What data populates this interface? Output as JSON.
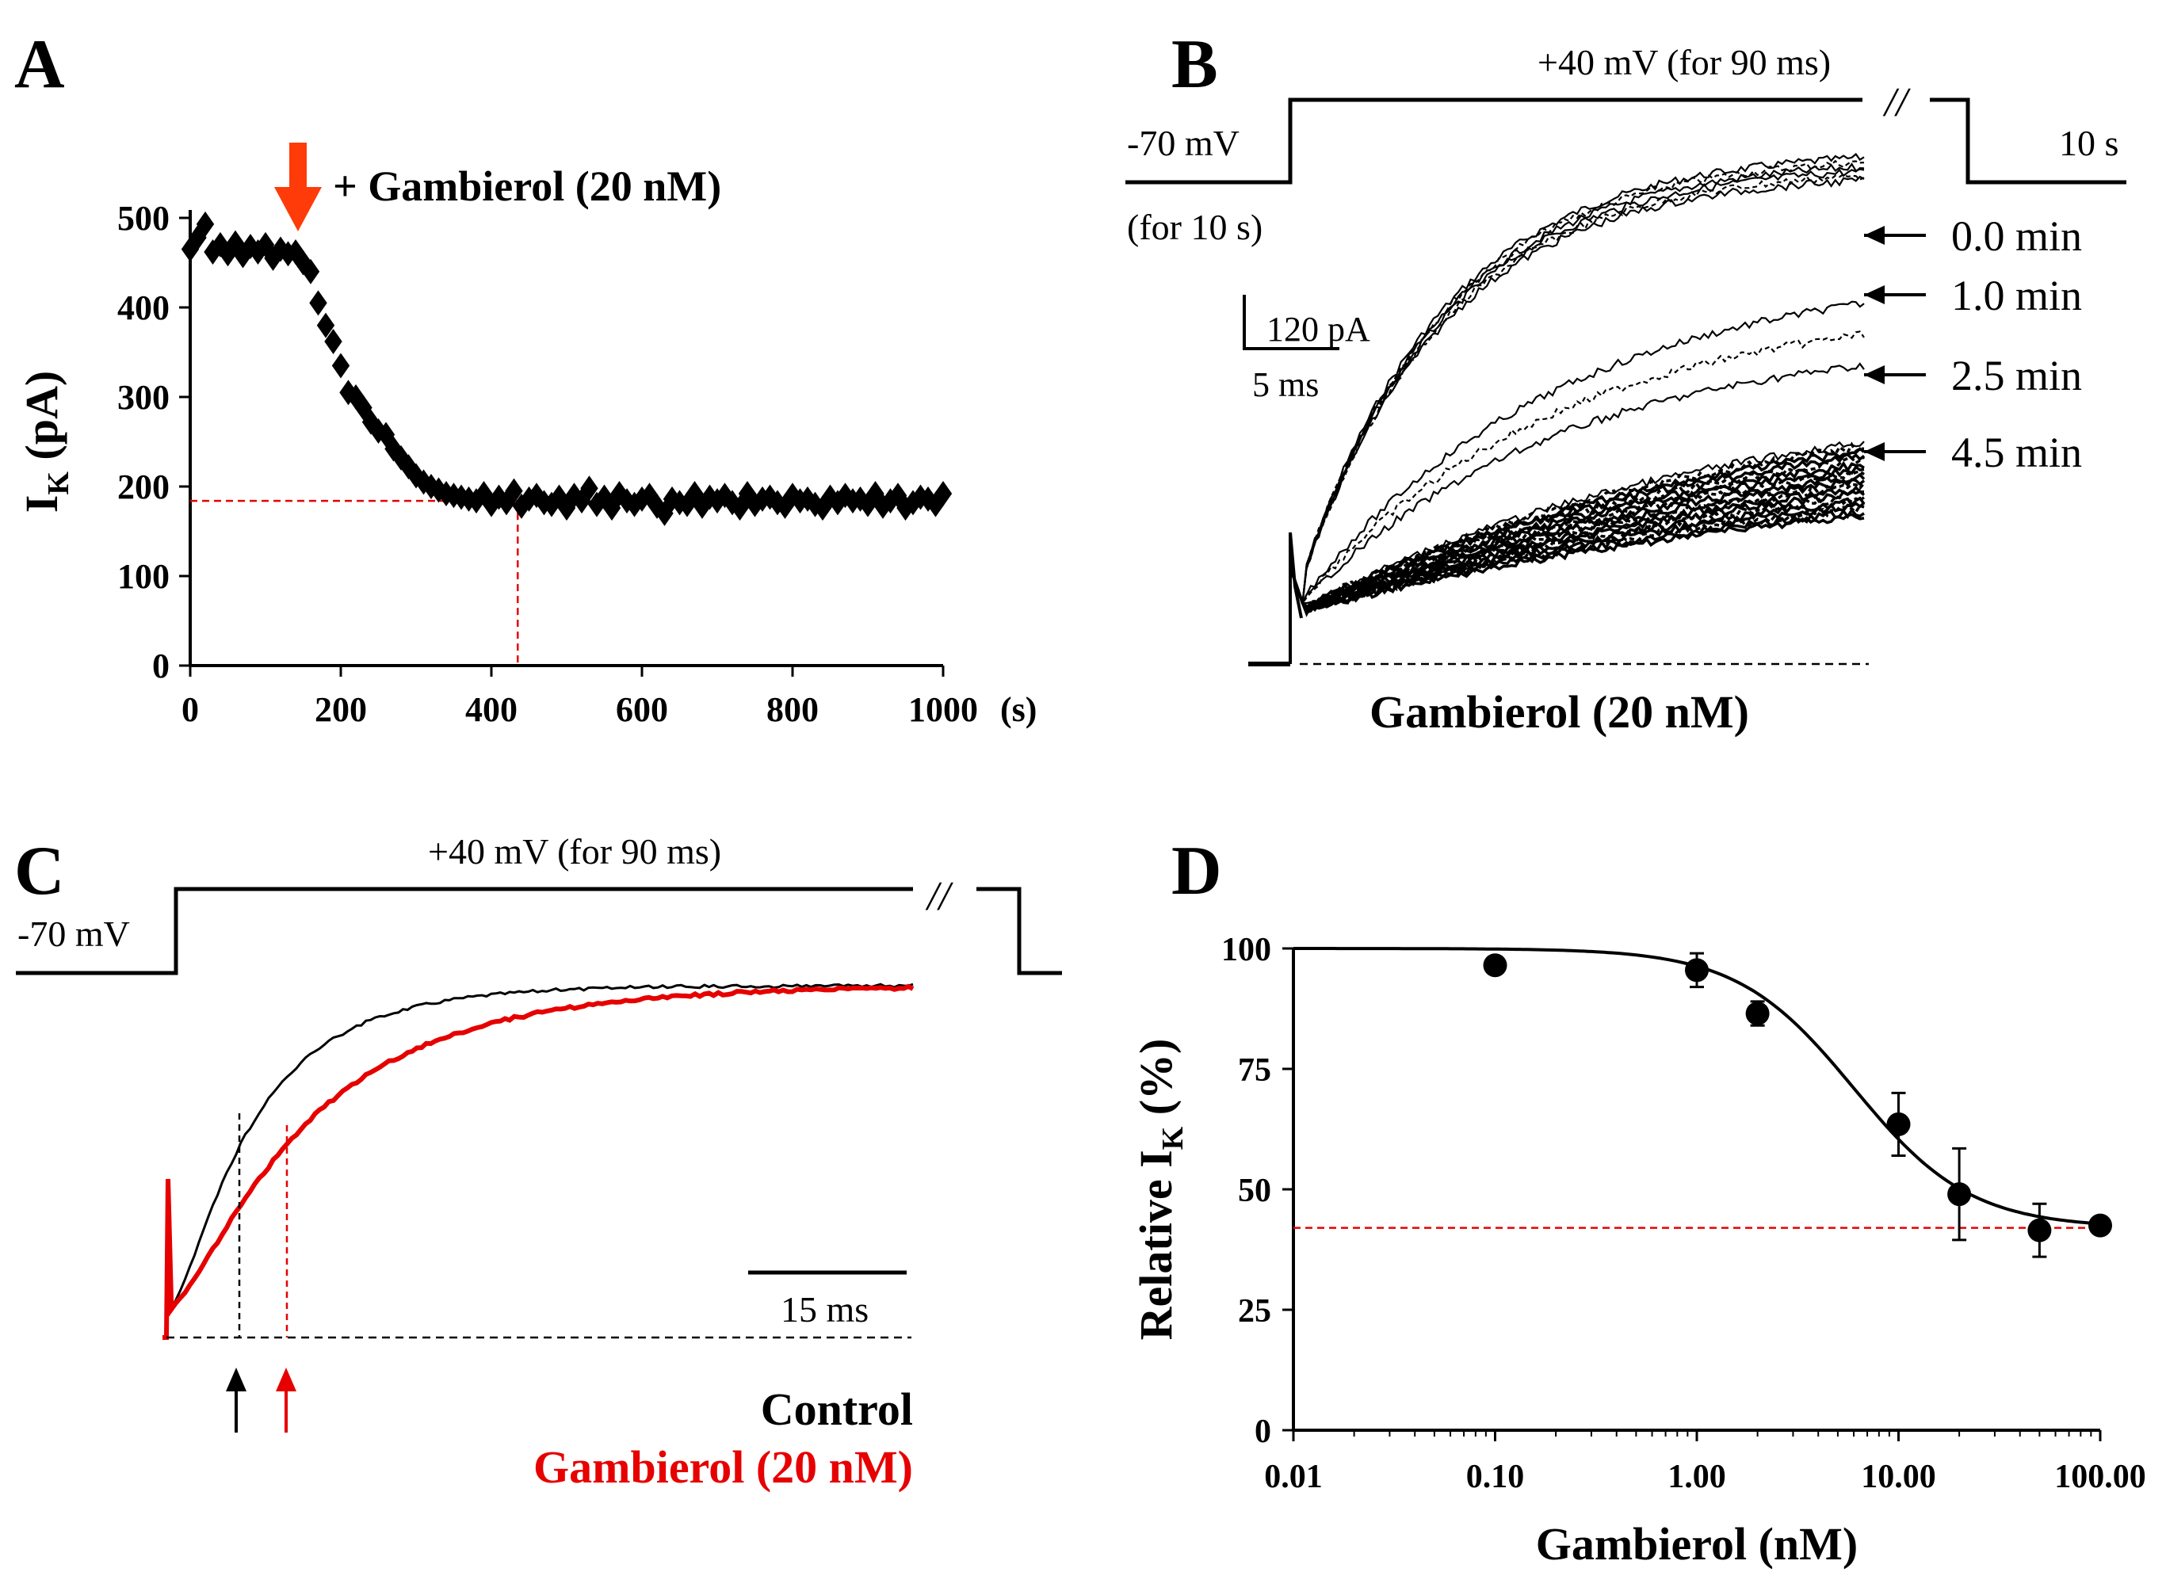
{
  "colors": {
    "ink": "#000000",
    "accent_red": "#e60000",
    "arrow_orange": "#ff3b0a"
  },
  "panels": {
    "A": {
      "label": "A",
      "annotation": "+ Gambierol (20 nM)",
      "annotation_arrow_icon": "down-arrow-icon",
      "chart_ref": 0
    },
    "B": {
      "label": "B",
      "protocol": {
        "holding": "-70 mV",
        "holding_duration": "(for 10 s)",
        "step": "+40 mV (for 90 ms)",
        "break_mark": "//",
        "interval": "10 s"
      },
      "scale_bar": {
        "current": "120 pA",
        "time": "5 ms"
      },
      "time_labels": [
        "0.0 min",
        "1.0 min",
        "2.5 min",
        "4.5 min"
      ],
      "caption": "Gambierol (20 nM)"
    },
    "C": {
      "label": "C",
      "protocol": {
        "holding": "-70 mV",
        "step": "+40 mV (for 90 ms)",
        "break_mark": "//"
      },
      "scale_bar": {
        "time": "15 ms"
      },
      "legend": {
        "control": "Control",
        "treated": "Gambierol (20 nM)"
      }
    },
    "D": {
      "label": "D",
      "chart_ref": 1
    }
  },
  "chart_data": [
    {
      "panel": "A",
      "type": "scatter",
      "xlabel": "(s)",
      "ylabel_main": "I",
      "ylabel_sub": "K",
      "ylabel_unit": "(pA)",
      "xlim": [
        0,
        1000
      ],
      "ylim": [
        0,
        500
      ],
      "xticks": [
        0,
        200,
        400,
        600,
        800,
        1000
      ],
      "yticks": [
        0,
        100,
        200,
        300,
        400,
        500
      ],
      "treatment_time": 140,
      "steady_state": 184,
      "steady_state_time": 435,
      "x": [
        0,
        10,
        20,
        30,
        40,
        50,
        60,
        70,
        80,
        90,
        100,
        110,
        120,
        130,
        140,
        150,
        160,
        170,
        180,
        190,
        200,
        210,
        220,
        230,
        240,
        250,
        260,
        270,
        280,
        290,
        300,
        310,
        320,
        330,
        340,
        350,
        360,
        370,
        380,
        390,
        400,
        410,
        420,
        430,
        440,
        450,
        460,
        470,
        480,
        490,
        500,
        510,
        520,
        530,
        540,
        550,
        560,
        570,
        580,
        590,
        600,
        610,
        620,
        630,
        640,
        650,
        660,
        670,
        680,
        690,
        700,
        710,
        720,
        730,
        740,
        750,
        760,
        770,
        780,
        790,
        800,
        810,
        820,
        830,
        840,
        850,
        860,
        870,
        880,
        890,
        900,
        910,
        920,
        930,
        940,
        950,
        960,
        970,
        980,
        990,
        1000
      ],
      "y": [
        465,
        478,
        493,
        462,
        470,
        460,
        472,
        458,
        468,
        462,
        470,
        455,
        465,
        460,
        462,
        450,
        440,
        405,
        380,
        362,
        335,
        305,
        300,
        288,
        272,
        262,
        258,
        242,
        232,
        222,
        212,
        205,
        200,
        196,
        192,
        190,
        188,
        186,
        184,
        192,
        180,
        188,
        182,
        195,
        178,
        186,
        190,
        182,
        180,
        188,
        176,
        190,
        184,
        198,
        180,
        188,
        176,
        192,
        184,
        180,
        186,
        190,
        178,
        170,
        186,
        182,
        180,
        192,
        178,
        188,
        184,
        190,
        182,
        176,
        192,
        180,
        186,
        188,
        182,
        178,
        190,
        184,
        186,
        180,
        176,
        188,
        182,
        190,
        184,
        186,
        180,
        192,
        178,
        184,
        190,
        176,
        182,
        188,
        186,
        180,
        192
      ]
    },
    {
      "panel": "D",
      "type": "scatter",
      "xlabel": "Gambierol (nM)",
      "ylabel_main": "Relative I",
      "ylabel_sub": "K",
      "ylabel_unit": "(%)",
      "xscale": "log",
      "xlim": [
        0.01,
        100
      ],
      "ylim": [
        0,
        100
      ],
      "xticks": [
        0.01,
        0.1,
        1,
        10,
        100
      ],
      "xtick_labels": [
        "0.01",
        "0.10",
        "1.00",
        "10.00",
        "100.00"
      ],
      "yticks": [
        0,
        25,
        50,
        75,
        100
      ],
      "x": [
        0.1,
        1,
        2,
        10,
        20,
        50,
        100
      ],
      "y": [
        96.5,
        95.5,
        86.5,
        63.5,
        49,
        41.5,
        42.5
      ],
      "error": [
        0,
        3.5,
        2.5,
        6.5,
        9.5,
        5.5,
        0
      ],
      "fit": {
        "top": 100,
        "bottom": 42,
        "ic50": 6.0,
        "hill": 1.5
      },
      "reference_line": 42
    }
  ]
}
